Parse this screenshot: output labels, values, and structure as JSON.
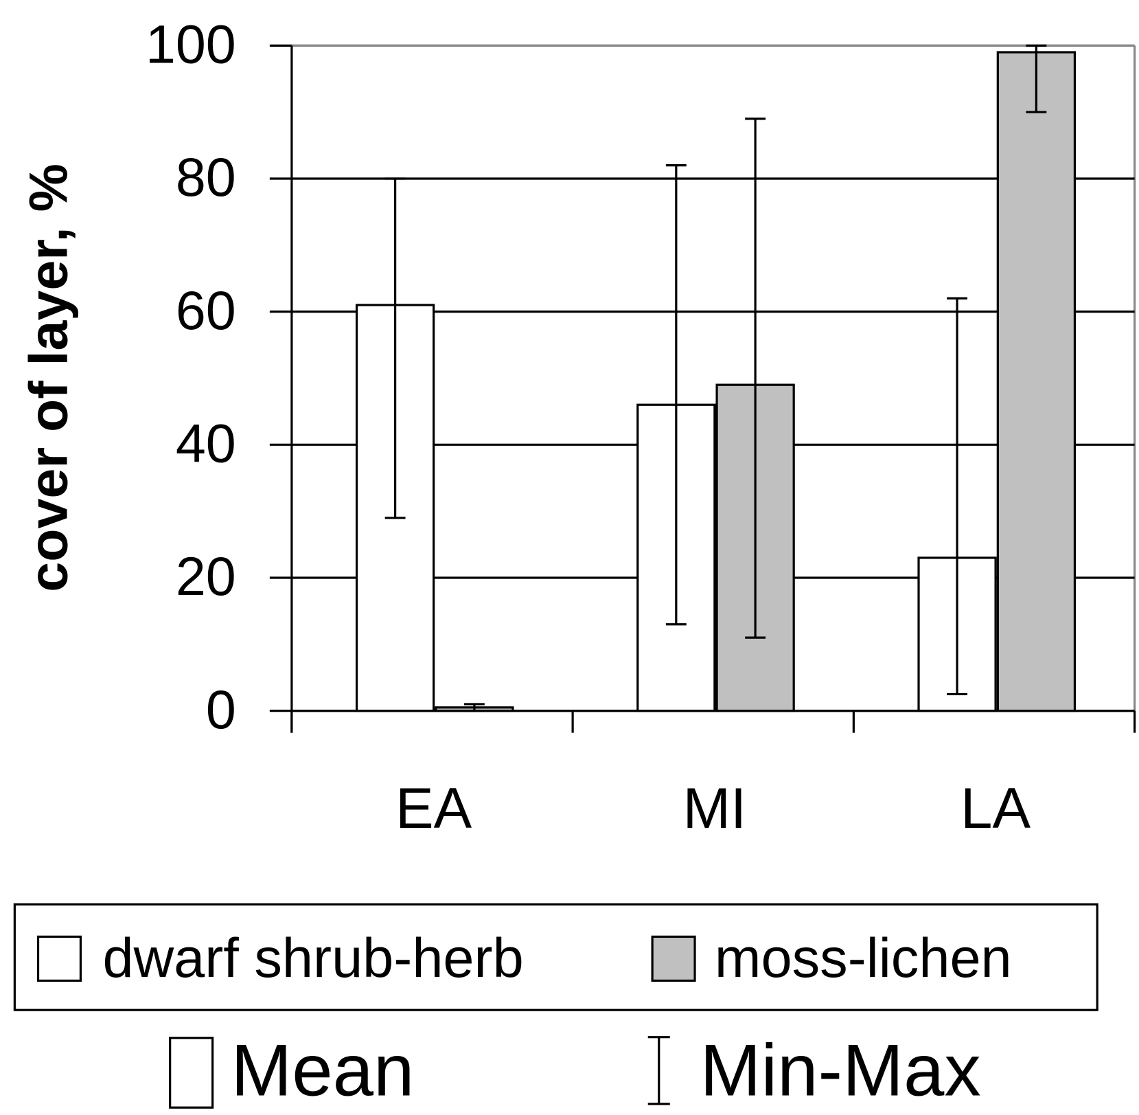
{
  "chart_data": {
    "type": "bar",
    "ylabel": "cover of layer, %",
    "categories": [
      "EA",
      "MI",
      "LA"
    ],
    "series": [
      {
        "name": "dwarf shrub-herb",
        "color": "#ffffff",
        "values": [
          61,
          46,
          23
        ],
        "min": [
          29,
          13,
          2.5
        ],
        "max": [
          80,
          82,
          62
        ]
      },
      {
        "name": "moss-lichen",
        "color": "#c0c0c0",
        "values": [
          0.5,
          49,
          99
        ],
        "min": [
          0,
          11,
          90
        ],
        "max": [
          1,
          89,
          100
        ]
      }
    ],
    "ylim": [
      0,
      100
    ],
    "yticks": [
      0,
      20,
      40,
      60,
      80,
      100
    ],
    "grid": true,
    "mean_label": "Mean",
    "minmax_label": "Min-Max"
  }
}
